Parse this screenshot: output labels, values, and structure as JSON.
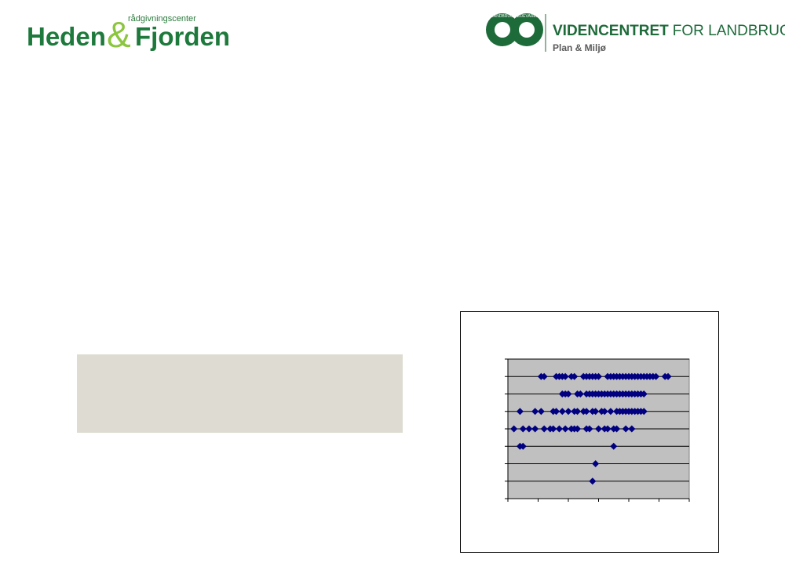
{
  "header": {
    "left_logo": {
      "tagline": "rådgivningscenter",
      "name1": "Heden",
      "amp": "&",
      "name2": "Fjorden"
    },
    "right_logo": {
      "ring1": "LANDBRUG",
      "ring2": "FØDEVARER",
      "title_bold": "VIDENCENTRET",
      "title_regular": "FOR LANDBRUG",
      "subtitle": "Plan & Miljø"
    }
  },
  "chart_data": {
    "type": "scatter",
    "color": "#000080",
    "plot_background": "#c0c0c0",
    "grid": true,
    "xlim": [
      0,
      6
    ],
    "xticks": [
      0,
      1,
      2,
      3,
      4,
      5,
      6
    ],
    "ylim": [
      0,
      8
    ],
    "yticks": [
      0,
      1,
      2,
      3,
      4,
      5,
      6,
      7,
      8
    ],
    "x": [
      1.1,
      1.2,
      1.6,
      1.7,
      1.8,
      1.9,
      2.1,
      2.2,
      2.5,
      2.6,
      2.7,
      2.8,
      2.9,
      3.0,
      3.3,
      3.4,
      3.5,
      3.6,
      3.7,
      3.8,
      3.9,
      4.0,
      4.1,
      4.2,
      4.3,
      4.4,
      4.5,
      4.6,
      4.7,
      4.8,
      4.9,
      5.2,
      5.3,
      1.8,
      1.9,
      2.0,
      2.3,
      2.4,
      2.6,
      2.7,
      2.8,
      2.9,
      3.0,
      3.1,
      3.2,
      3.3,
      3.4,
      3.5,
      3.6,
      3.7,
      3.8,
      3.9,
      4.0,
      4.1,
      4.2,
      4.3,
      4.4,
      4.5,
      0.4,
      0.9,
      1.1,
      1.5,
      1.6,
      1.8,
      2.0,
      2.2,
      2.3,
      2.5,
      2.6,
      2.8,
      2.9,
      3.1,
      3.2,
      3.4,
      3.6,
      3.7,
      3.8,
      3.9,
      4.0,
      4.1,
      4.2,
      4.3,
      4.4,
      4.5,
      0.2,
      0.5,
      0.7,
      0.9,
      1.2,
      1.4,
      1.5,
      1.7,
      1.9,
      2.1,
      2.2,
      2.3,
      2.6,
      2.7,
      3.0,
      3.2,
      3.3,
      3.5,
      3.6,
      3.9,
      4.1,
      0.4,
      0.5,
      3.5,
      2.9,
      2.8
    ],
    "values": [
      7,
      7,
      7,
      7,
      7,
      7,
      7,
      7,
      7,
      7,
      7,
      7,
      7,
      7,
      7,
      7,
      7,
      7,
      7,
      7,
      7,
      7,
      7,
      7,
      7,
      7,
      7,
      7,
      7,
      7,
      7,
      7,
      7,
      6,
      6,
      6,
      6,
      6,
      6,
      6,
      6,
      6,
      6,
      6,
      6,
      6,
      6,
      6,
      6,
      6,
      6,
      6,
      6,
      6,
      6,
      6,
      6,
      6,
      5,
      5,
      5,
      5,
      5,
      5,
      5,
      5,
      5,
      5,
      5,
      5,
      5,
      5,
      5,
      5,
      5,
      5,
      5,
      5,
      5,
      5,
      5,
      5,
      5,
      5,
      4,
      4,
      4,
      4,
      4,
      4,
      4,
      4,
      4,
      4,
      4,
      4,
      4,
      4,
      4,
      4,
      4,
      4,
      4,
      4,
      4,
      3,
      3,
      3,
      2,
      1
    ]
  }
}
